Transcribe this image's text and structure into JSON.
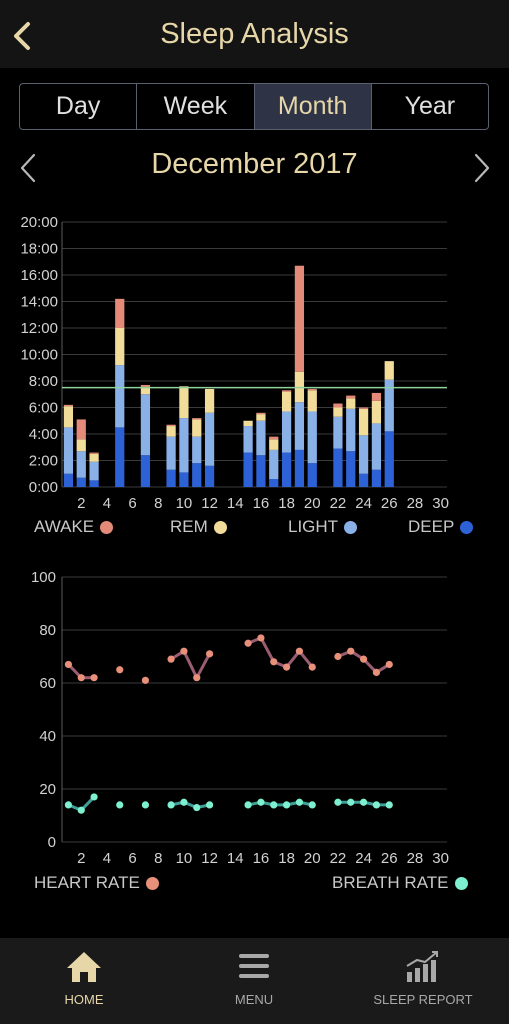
{
  "header": {
    "title": "Sleep Analysis"
  },
  "tabs": [
    {
      "label": "Day",
      "active": false
    },
    {
      "label": "Week",
      "active": false
    },
    {
      "label": "Month",
      "active": true
    },
    {
      "label": "Year",
      "active": false
    }
  ],
  "month": {
    "label": "December 2017"
  },
  "colors": {
    "awake": "#e48a78",
    "rem": "#f2dc9a",
    "light": "#8ab0e8",
    "deep": "#2d62d6",
    "heart": "#e8907a",
    "breath": "#7ef0cf",
    "goal_line": "#8ed49a",
    "accent": "#e6d6a8"
  },
  "chart_data": [
    {
      "type": "bar",
      "stacked": true,
      "x": [
        1,
        2,
        3,
        4,
        5,
        6,
        7,
        8,
        9,
        10,
        11,
        12,
        13,
        14,
        15,
        16,
        17,
        18,
        19,
        20,
        21,
        22,
        23,
        24,
        25,
        26,
        27,
        28,
        29,
        30
      ],
      "x_ticks": [
        2,
        4,
        6,
        8,
        10,
        12,
        14,
        16,
        18,
        20,
        22,
        24,
        26,
        28,
        30
      ],
      "y_ticks": [
        "0:00",
        "2:00",
        "4:00",
        "6:00",
        "8:00",
        "10:00",
        "12:00",
        "14:00",
        "16:00",
        "18:00",
        "20:00"
      ],
      "ylim": [
        0,
        20
      ],
      "goal_line": 7.5,
      "series": [
        {
          "name": "DEEP",
          "values": [
            1.0,
            0.7,
            0.5,
            0,
            4.5,
            0,
            2.4,
            0,
            1.3,
            1.1,
            1.8,
            1.6,
            0,
            0,
            2.6,
            2.4,
            0.6,
            2.6,
            2.8,
            1.8,
            0,
            2.9,
            2.7,
            1.0,
            1.3,
            4.2,
            0,
            0,
            0,
            0
          ]
        },
        {
          "name": "LIGHT",
          "values": [
            3.5,
            2.0,
            1.4,
            0,
            4.7,
            0,
            4.6,
            0,
            2.5,
            4.1,
            2.0,
            4.0,
            0,
            0,
            2.0,
            2.6,
            2.2,
            3.1,
            3.6,
            3.9,
            0,
            2.4,
            3.2,
            2.9,
            3.5,
            3.9,
            0,
            0,
            0,
            0
          ]
        },
        {
          "name": "REM",
          "values": [
            1.6,
            0.9,
            0.6,
            0,
            2.8,
            0,
            0.5,
            0,
            0.8,
            2.4,
            1.3,
            1.8,
            0,
            0,
            0.4,
            0.5,
            0.8,
            1.5,
            2.3,
            1.6,
            0,
            0.7,
            0.8,
            2.0,
            1.7,
            1.4,
            0,
            0,
            0,
            0
          ]
        },
        {
          "name": "AWAKE",
          "values": [
            0.1,
            1.5,
            0.1,
            0,
            2.2,
            0,
            0.2,
            0,
            0.1,
            0,
            0.1,
            0,
            0,
            0,
            0,
            0.1,
            0.2,
            0.1,
            8.0,
            0.1,
            0,
            0.3,
            0.2,
            0.1,
            0.6,
            0,
            0,
            0,
            0,
            0
          ]
        }
      ],
      "legend": [
        "AWAKE",
        "REM",
        "LIGHT",
        "DEEP"
      ]
    },
    {
      "type": "line",
      "x": [
        1,
        2,
        3,
        4,
        5,
        6,
        7,
        8,
        9,
        10,
        11,
        12,
        13,
        14,
        15,
        16,
        17,
        18,
        19,
        20,
        21,
        22,
        23,
        24,
        25,
        26,
        27,
        28,
        29,
        30
      ],
      "x_ticks": [
        2,
        4,
        6,
        8,
        10,
        12,
        14,
        16,
        18,
        20,
        22,
        24,
        26,
        28,
        30
      ],
      "y_ticks": [
        0,
        20,
        40,
        60,
        80,
        100
      ],
      "ylim": [
        0,
        100
      ],
      "series": [
        {
          "name": "HEART RATE",
          "values": [
            67,
            62,
            62,
            null,
            65,
            null,
            61,
            null,
            69,
            72,
            62,
            71,
            null,
            null,
            75,
            77,
            68,
            66,
            72,
            66,
            null,
            70,
            72,
            69,
            64,
            67,
            null,
            null,
            null,
            null
          ]
        },
        {
          "name": "BREATH RATE",
          "values": [
            14,
            12,
            17,
            null,
            14,
            null,
            14,
            null,
            14,
            15,
            13,
            14,
            null,
            null,
            14,
            15,
            14,
            14,
            15,
            14,
            null,
            15,
            15,
            15,
            14,
            14,
            null,
            null,
            null,
            null
          ]
        }
      ]
    }
  ],
  "nav": [
    {
      "label": "HOME",
      "icon": "home-icon",
      "active": true
    },
    {
      "label": "MENU",
      "icon": "menu-icon",
      "active": false
    },
    {
      "label": "SLEEP REPORT",
      "icon": "sleep-report-icon",
      "active": false
    }
  ]
}
